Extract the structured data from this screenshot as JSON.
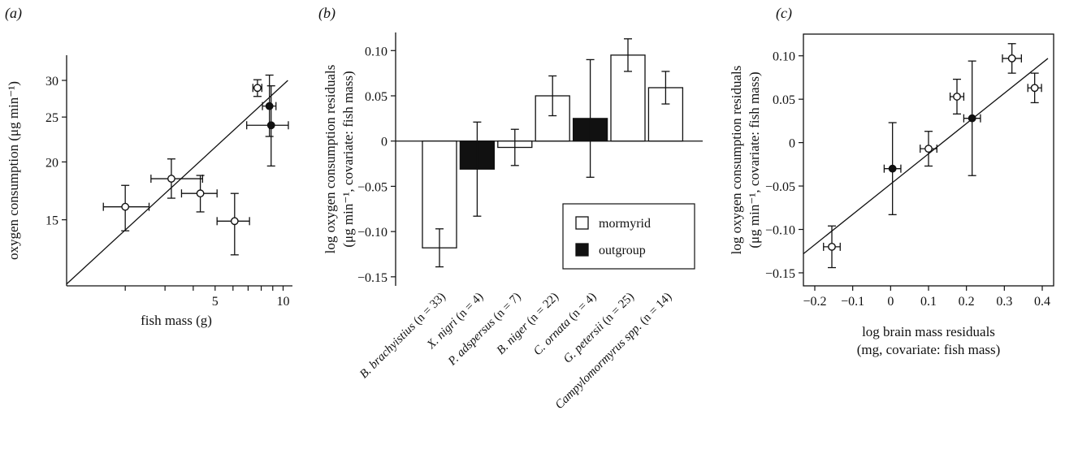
{
  "chart_data": [
    {
      "panel_label": "(a)",
      "type": "scatter",
      "xlabel": "fish mass (g)",
      "ylabel": "oxygen consumption (μg min⁻¹)",
      "xlim": [
        0,
        11
      ],
      "ylim": [
        10.8,
        34
      ],
      "xscale": "log",
      "yscale": "log",
      "xticks": [
        2,
        3,
        4,
        5,
        6,
        7,
        8,
        9,
        10
      ],
      "xtick_labels": [
        "",
        "",
        "",
        "5",
        "",
        "",
        "",
        "",
        "10"
      ],
      "yticks": [
        15,
        20,
        25,
        30
      ],
      "ytick_labels": [
        "15",
        "20",
        "25",
        "30"
      ],
      "points": [
        {
          "group": "mormyrid",
          "x": 7.7,
          "y": 28.9,
          "xerr": [
            0.35,
            0.35
          ],
          "yerr": [
            1.2,
            1.2
          ]
        },
        {
          "group": "outgroup",
          "x": 8.7,
          "y": 26.4,
          "xerr": [
            0.6,
            0.6
          ],
          "yerr": [
            3.7,
            4.4
          ]
        },
        {
          "group": "outgroup",
          "x": 8.85,
          "y": 24.0,
          "xerr": [
            1.95,
            1.7
          ],
          "yerr": [
            4.4,
            5.2
          ]
        },
        {
          "group": "mormyrid",
          "x": 3.2,
          "y": 18.4,
          "xerr": [
            0.6,
            1.2
          ],
          "yerr": [
            1.7,
            1.9
          ]
        },
        {
          "group": "mormyrid",
          "x": 4.3,
          "y": 17.1,
          "xerr": [
            0.75,
            0.8
          ],
          "yerr": [
            1.5,
            1.6
          ]
        },
        {
          "group": "mormyrid",
          "x": 2.0,
          "y": 16.0,
          "xerr": [
            0.4,
            0.55
          ],
          "yerr": [
            1.8,
            1.8
          ]
        },
        {
          "group": "mormyrid",
          "x": 6.1,
          "y": 14.9,
          "xerr": [
            1.0,
            1.0
          ],
          "yerr": [
            2.3,
            2.2
          ]
        }
      ],
      "regression": {
        "x": [
          1.1,
          10.5
        ],
        "y": [
          10.9,
          30.0
        ]
      }
    },
    {
      "panel_label": "(b)",
      "type": "bar",
      "ylabel_lines": [
        "log oxygen consumption residuals",
        "(μg min⁻¹, covariate: fish mass)"
      ],
      "ylim": [
        -0.16,
        0.12
      ],
      "yticks": [
        -0.15,
        -0.1,
        -0.05,
        0,
        0.05,
        0.1
      ],
      "ytick_labels": [
        "−0.15",
        "−0.10",
        "−0.05",
        "0",
        "0.05",
        "0.10"
      ],
      "categories": [
        {
          "label": "B. brachyistius (n = 33)",
          "name": "B. brachyistius",
          "n": "(n = 33)",
          "group": "mormyrid"
        },
        {
          "label": "X. nigri (n = 4)",
          "name": "X. nigri",
          "n": "(n = 4)",
          "group": "outgroup"
        },
        {
          "label": "P. adspersus (n = 7)",
          "name": "P. adspersus",
          "n": "(n = 7)",
          "group": "mormyrid"
        },
        {
          "label": "B. niger (n = 22)",
          "name": "B. niger",
          "n": "(n = 22)",
          "group": "mormyrid"
        },
        {
          "label": "C. ornata (n = 4)",
          "name": "C. ornata",
          "n": "(n = 4)",
          "group": "outgroup"
        },
        {
          "label": "G. petersii (n = 25)",
          "name": "G. petersii",
          "n": "(n = 25)",
          "group": "mormyrid"
        },
        {
          "label": "Campylomormyrus spp. (n = 14)",
          "name": "Campylomormyrus spp.",
          "n": "(n = 14)",
          "group": "mormyrid"
        }
      ],
      "values": [
        -0.118,
        -0.031,
        -0.007,
        0.05,
        0.025,
        0.095,
        0.059
      ],
      "errors": [
        0.021,
        0.052,
        0.02,
        0.022,
        0.065,
        0.018,
        0.018
      ],
      "legend": {
        "position": "bottom-right",
        "entries": [
          {
            "label": "mormyrid",
            "color": "#ffffff"
          },
          {
            "label": "outgroup",
            "color": "#111111"
          }
        ]
      }
    },
    {
      "panel_label": "(c)",
      "type": "scatter",
      "xlabel_lines": [
        "log brain mass residuals",
        "(mg, covariate: fish mass)"
      ],
      "ylabel_lines": [
        "log oxygen consumption residuals",
        "(μg min⁻¹, covariate: fish mass)"
      ],
      "xlim": [
        -0.23,
        0.43
      ],
      "ylim": [
        -0.165,
        0.125
      ],
      "xticks": [
        -0.2,
        -0.1,
        0,
        0.1,
        0.2,
        0.3,
        0.4
      ],
      "xtick_labels": [
        "−0.2",
        "−0.1",
        "0",
        "0.1",
        "0.2",
        "0.3",
        "0.4"
      ],
      "yticks": [
        -0.15,
        -0.1,
        -0.05,
        0,
        0.05,
        0.1
      ],
      "ytick_labels": [
        "−0.15",
        "−0.10",
        "−0.05",
        "0",
        "0.05",
        "0.10"
      ],
      "points": [
        {
          "group": "mormyrid",
          "x": -0.155,
          "y": -0.12,
          "xerr": 0.022,
          "yerr": 0.024
        },
        {
          "group": "outgroup",
          "x": 0.005,
          "y": -0.03,
          "xerr": 0.022,
          "yerr": 0.053
        },
        {
          "group": "mormyrid",
          "x": 0.1,
          "y": -0.007,
          "xerr": 0.022,
          "yerr": 0.02
        },
        {
          "group": "mormyrid",
          "x": 0.175,
          "y": 0.053,
          "xerr": 0.018,
          "yerr": 0.02
        },
        {
          "group": "outgroup",
          "x": 0.215,
          "y": 0.028,
          "xerr": 0.022,
          "yerr": 0.066
        },
        {
          "group": "mormyrid",
          "x": 0.32,
          "y": 0.097,
          "xerr": 0.025,
          "yerr": 0.017
        },
        {
          "group": "mormyrid",
          "x": 0.38,
          "y": 0.063,
          "xerr": 0.018,
          "yerr": 0.017
        }
      ],
      "regression": {
        "x": [
          -0.23,
          0.415
        ],
        "y": [
          -0.128,
          0.097
        ]
      }
    }
  ]
}
